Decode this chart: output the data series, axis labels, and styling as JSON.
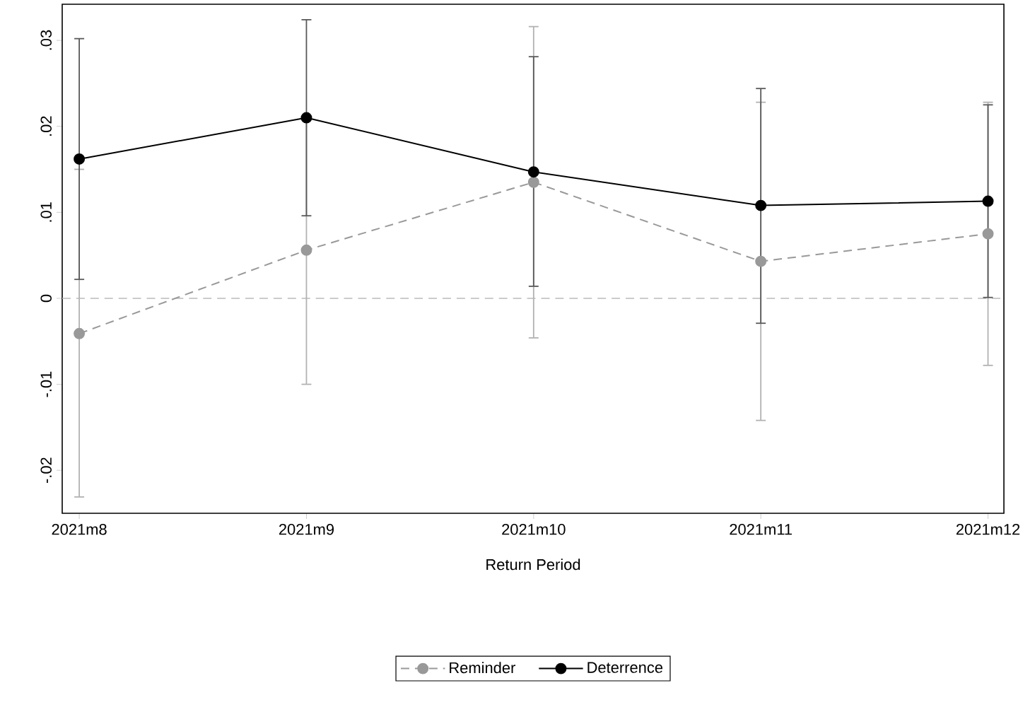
{
  "chart_data": {
    "type": "line",
    "xlabel": "Return Period",
    "categories": [
      "2021m8",
      "2021m9",
      "2021m10",
      "2021m11",
      "2021m12"
    ],
    "series": [
      {
        "name": "Reminder",
        "color": "#999999",
        "line_style": "dashed",
        "values": [
          -0.0041,
          0.0056,
          0.0135,
          0.0043,
          0.0075
        ],
        "errors": [
          [
            -0.0231,
            0.015
          ],
          [
            -0.01,
            0.0212
          ],
          [
            -0.0046,
            0.0316
          ],
          [
            -0.0142,
            0.0228
          ],
          [
            -0.0078,
            0.0228
          ]
        ]
      },
      {
        "name": "Deterrence",
        "color": "#000000",
        "line_style": "solid",
        "values": [
          0.0162,
          0.021,
          0.0147,
          0.0108,
          0.0113
        ],
        "errors": [
          [
            0.0022,
            0.0302
          ],
          [
            0.0096,
            0.0324
          ],
          [
            0.0014,
            0.0281
          ],
          [
            -0.0029,
            0.0244
          ],
          [
            0.0001,
            0.0225
          ]
        ]
      }
    ],
    "ylim": [
      -0.025,
      0.0342
    ],
    "yticks": [
      {
        "value": -0.02,
        "label": "-.02"
      },
      {
        "value": -0.01,
        "label": "-.01"
      },
      0,
      {
        "value": 0.01,
        "label": ".01"
      },
      {
        "value": 0.02,
        "label": ".02"
      },
      {
        "value": 0.03,
        "label": ".03"
      }
    ],
    "ref_lines": [
      {
        "axis": "y",
        "value": 0,
        "color": "#bbbbbb",
        "line_style": "dashed"
      }
    ],
    "marker": "circle",
    "grid": false,
    "legend": "bottom"
  }
}
